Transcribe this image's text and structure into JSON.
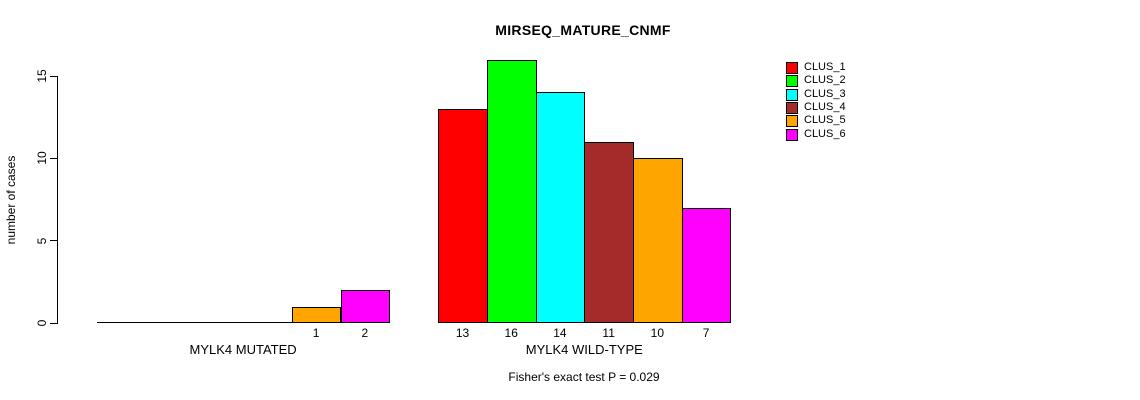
{
  "title": "MIRSEQ_MATURE_CNMF",
  "chart_data": {
    "type": "bar",
    "title": "MIRSEQ_MATURE_CNMF",
    "ylabel": "number of cases",
    "xlabel": "",
    "ylim": [
      0,
      16
    ],
    "yticks": [
      0,
      5,
      10,
      15
    ],
    "grid": false,
    "legend_position": "right",
    "annotation": "Fisher's exact test P = 0.029",
    "categories": [
      "MYLK4 MUTATED",
      "MYLK4 WILD-TYPE"
    ],
    "series": [
      {
        "name": "CLUS_1",
        "color": "#FF0000",
        "values": [
          0,
          13
        ]
      },
      {
        "name": "CLUS_2",
        "color": "#00FF00",
        "values": [
          0,
          16
        ]
      },
      {
        "name": "CLUS_3",
        "color": "#00FFFF",
        "values": [
          0,
          14
        ]
      },
      {
        "name": "CLUS_4",
        "color": "#A52A2A",
        "values": [
          0,
          11
        ]
      },
      {
        "name": "CLUS_5",
        "color": "#FFA500",
        "values": [
          1,
          10
        ]
      },
      {
        "name": "CLUS_6",
        "color": "#FF00FF",
        "values": [
          2,
          7
        ]
      }
    ],
    "groups": [
      {
        "label": "MYLK4 MUTATED",
        "values": [
          0,
          0,
          0,
          0,
          1,
          2
        ],
        "bar_labels": [
          "",
          "",
          "",
          "",
          "1",
          "2"
        ]
      },
      {
        "label": "MYLK4 WILD-TYPE",
        "values": [
          13,
          16,
          14,
          11,
          10,
          7
        ],
        "bar_labels": [
          "13",
          "16",
          "14",
          "11",
          "10",
          "7"
        ]
      }
    ]
  }
}
